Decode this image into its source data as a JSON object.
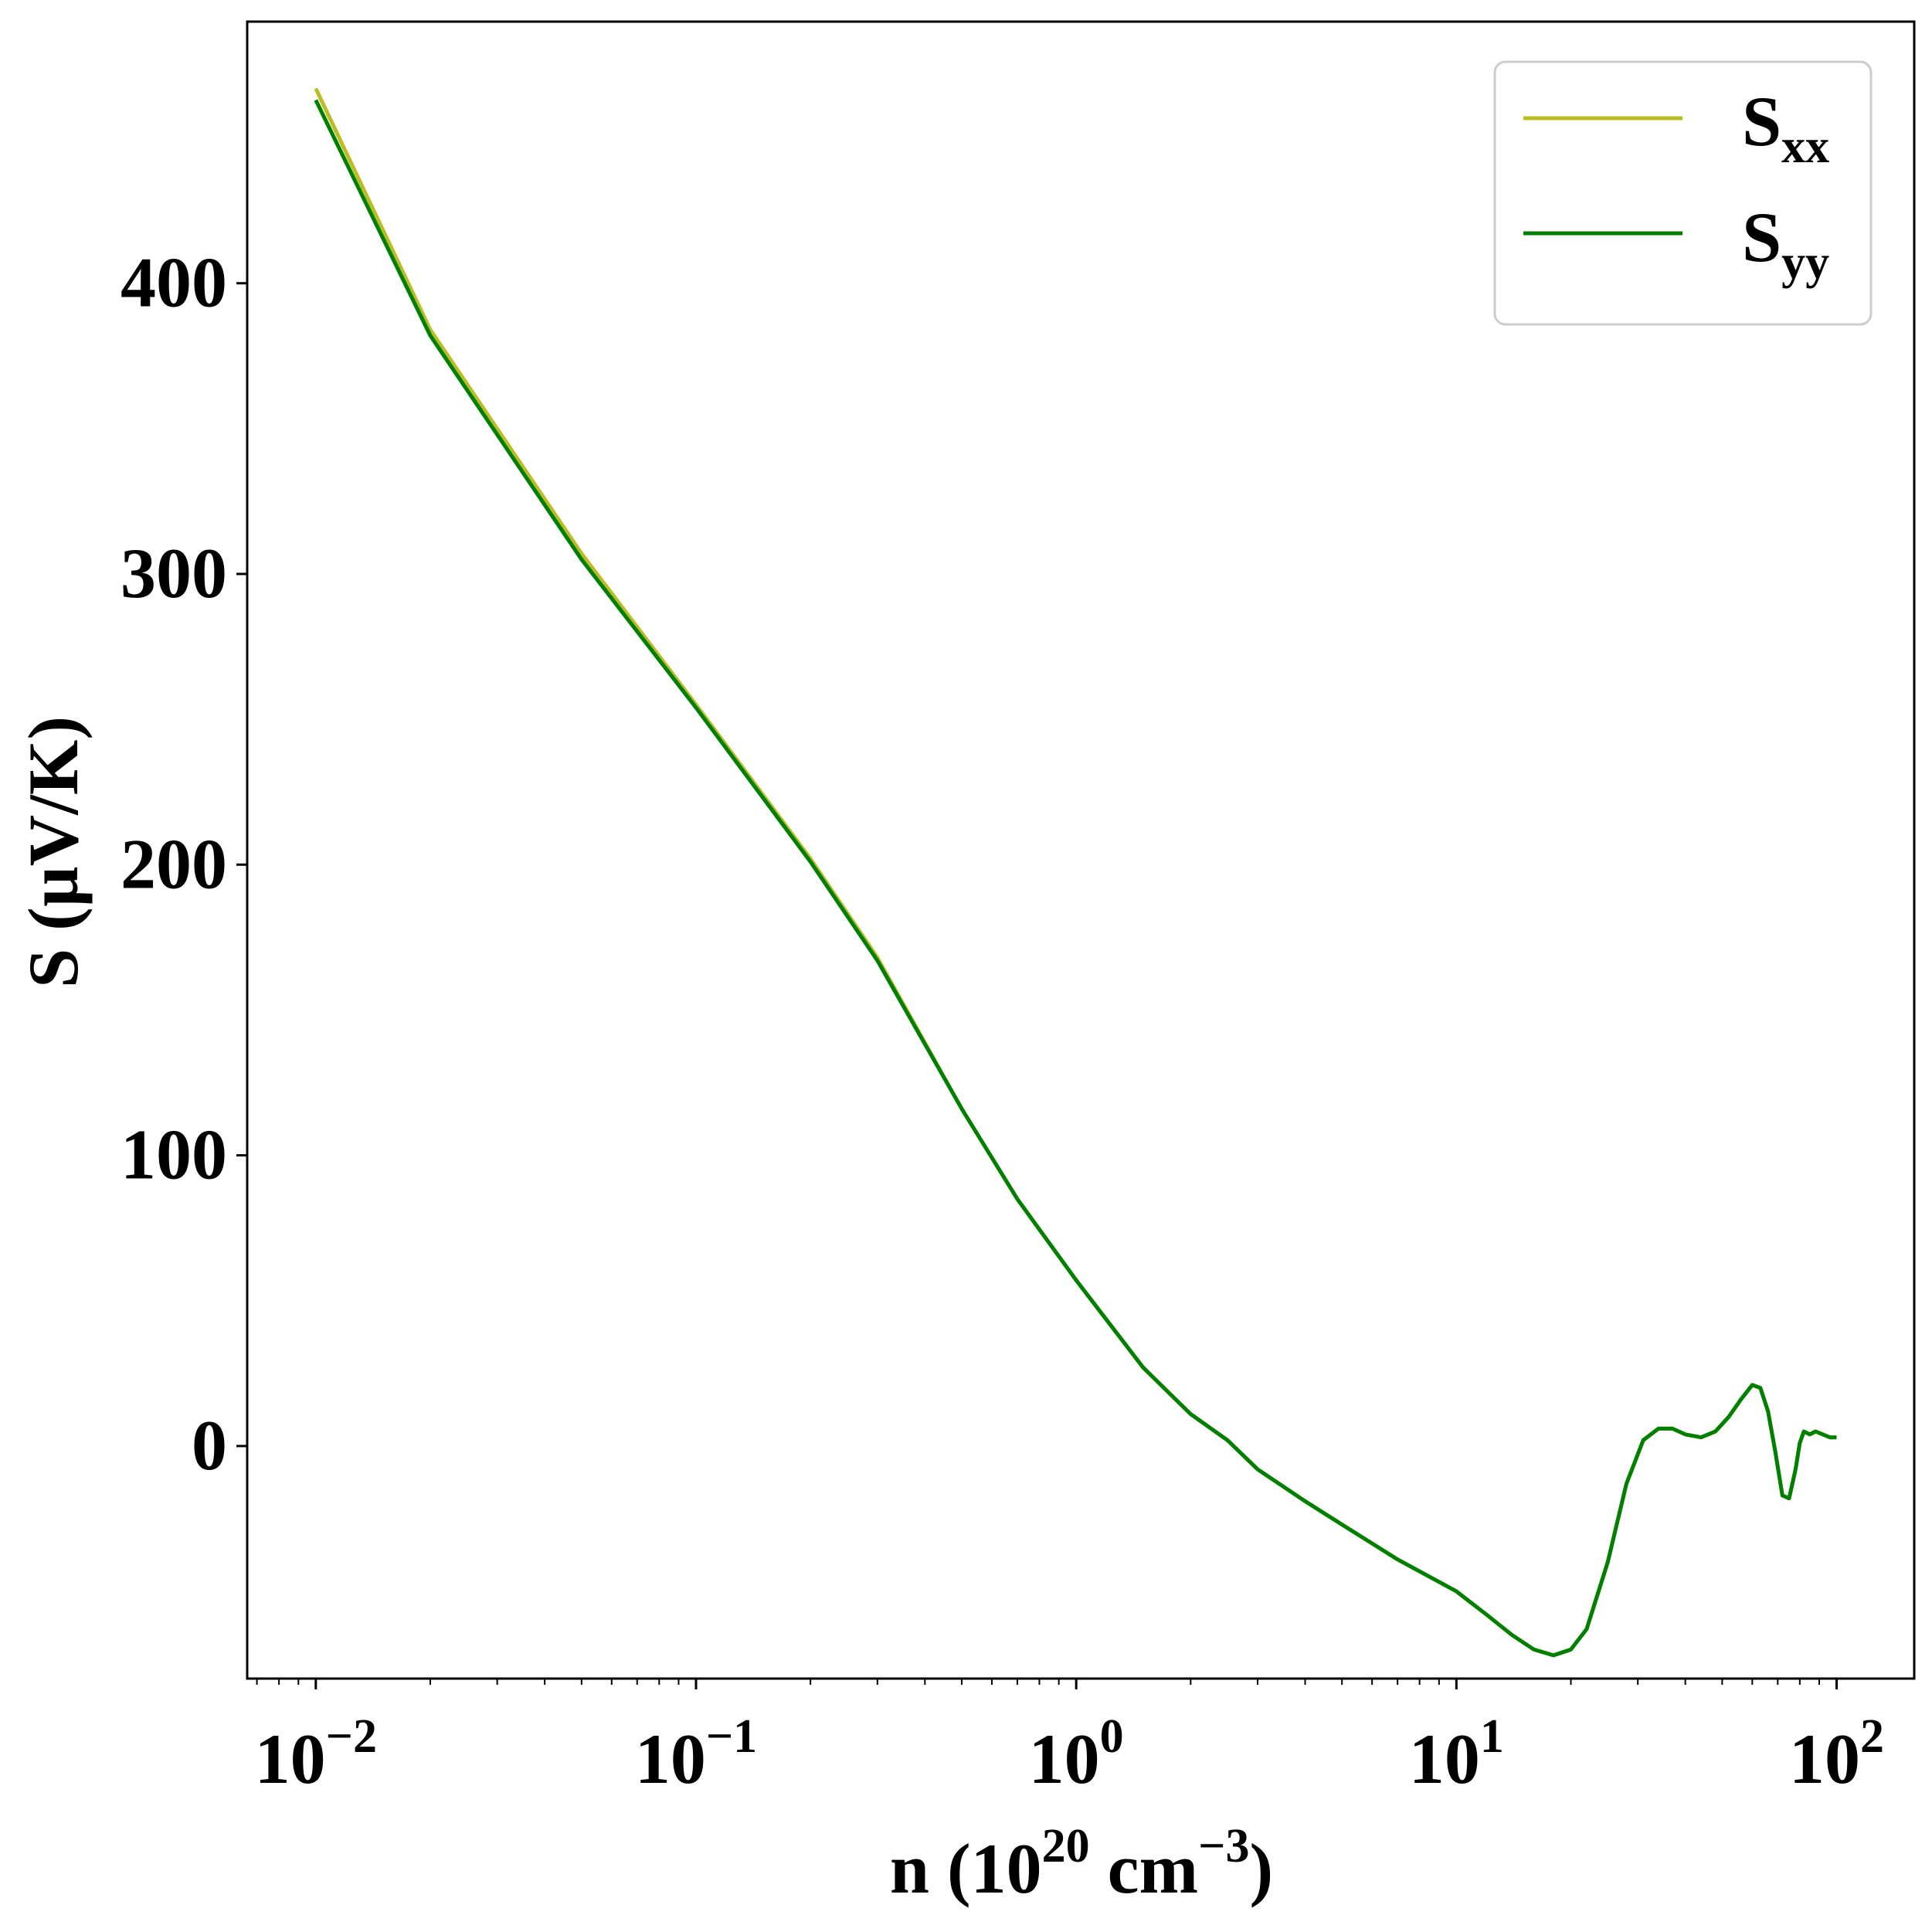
{
  "chart_data": {
    "type": "line",
    "xlabel": {
      "base": "n (10",
      "sup1": "20",
      "mid": " cm",
      "sup2": "−3",
      "end": ")"
    },
    "ylabel": "S (µV/K)",
    "x_scale": "log",
    "xlim": [
      0.0066,
      160
    ],
    "ylim": [
      -80,
      490
    ],
    "grid": false,
    "legend_position": "top-right",
    "x_ticks": [
      {
        "value": 0.01,
        "base": "10",
        "exp": "−2"
      },
      {
        "value": 0.1,
        "base": "10",
        "exp": "−1"
      },
      {
        "value": 1,
        "base": "10",
        "exp": "0"
      },
      {
        "value": 10,
        "base": "10",
        "exp": "1"
      },
      {
        "value": 100,
        "base": "10",
        "exp": "2"
      }
    ],
    "y_ticks": [
      {
        "value": 0,
        "label": "0"
      },
      {
        "value": 100,
        "label": "100"
      },
      {
        "value": 200,
        "label": "200"
      },
      {
        "value": 300,
        "label": "300"
      },
      {
        "value": 400,
        "label": "400"
      }
    ],
    "series": [
      {
        "name": "S_xx",
        "label_main": "S",
        "label_sub": "xx",
        "color": "#bcbd22",
        "x": [
          0.01,
          0.02,
          0.05,
          0.1,
          0.2,
          0.3,
          0.5,
          0.7,
          1,
          1.5,
          2,
          2.5,
          3,
          4,
          5,
          7,
          10,
          12,
          14,
          16,
          18,
          20,
          22,
          25,
          28,
          31,
          34,
          37,
          40,
          44,
          48,
          52,
          56,
          60,
          63,
          66,
          69,
          72,
          75,
          78,
          80,
          82,
          85,
          88,
          92,
          96,
          100
        ],
        "y": [
          467,
          384,
          307,
          255,
          202,
          168,
          116,
          85,
          57,
          27,
          11,
          2,
          -8,
          -19,
          -27,
          -39,
          -50,
          -58,
          -65,
          -70,
          -72,
          -70,
          -63,
          -40,
          -13,
          2,
          6,
          6,
          4,
          3,
          5,
          10,
          16,
          21,
          20,
          12,
          -2,
          -17,
          -18,
          -8,
          1,
          5,
          4,
          5,
          4,
          3,
          3
        ]
      },
      {
        "name": "S_yy",
        "label_main": "S",
        "label_sub": "yy",
        "color": "#008000",
        "x": [
          0.01,
          0.02,
          0.05,
          0.1,
          0.2,
          0.3,
          0.5,
          0.7,
          1,
          1.5,
          2,
          2.5,
          3,
          4,
          5,
          7,
          10,
          12,
          14,
          16,
          18,
          20,
          22,
          25,
          28,
          31,
          34,
          37,
          40,
          44,
          48,
          52,
          56,
          60,
          63,
          66,
          69,
          72,
          75,
          78,
          80,
          82,
          85,
          88,
          92,
          96,
          100
        ],
        "y": [
          463,
          382,
          305,
          254,
          201,
          167,
          116,
          85,
          57,
          27,
          11,
          2,
          -8,
          -19,
          -27,
          -39,
          -50,
          -58,
          -65,
          -70,
          -72,
          -70,
          -63,
          -40,
          -13,
          2,
          6,
          6,
          4,
          3,
          5,
          10,
          16,
          21,
          20,
          12,
          -2,
          -17,
          -18,
          -8,
          1,
          5,
          4,
          5,
          4,
          3,
          3
        ]
      }
    ]
  }
}
